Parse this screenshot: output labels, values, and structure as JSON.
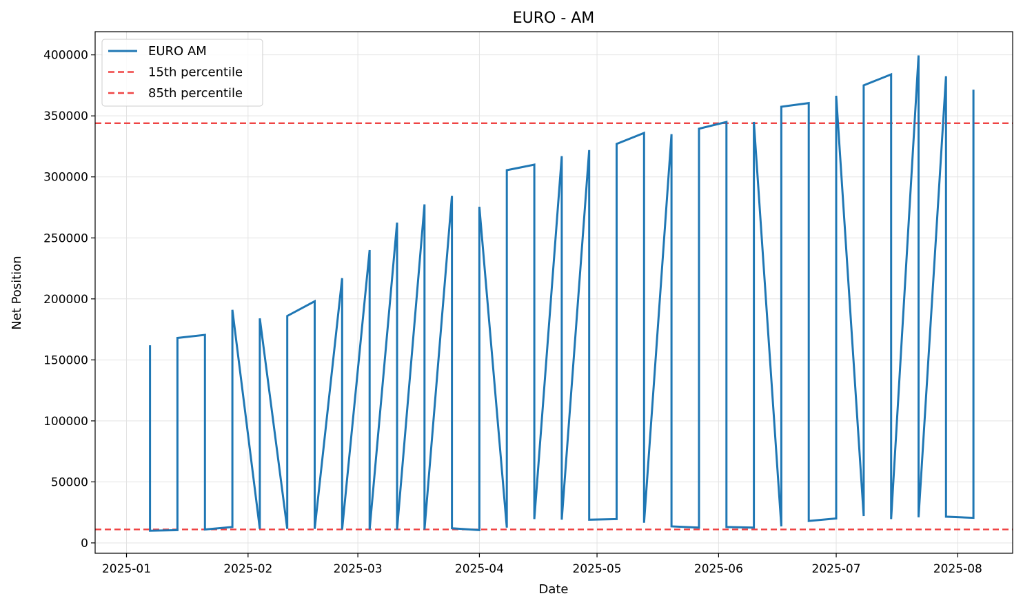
{
  "chart_data": {
    "type": "line",
    "title": "EURO - AM",
    "xlabel": "Date",
    "ylabel": "Net Position",
    "xlim": [
      "2024-12-24",
      "2025-08-15"
    ],
    "ylim": [
      -8500,
      419000
    ],
    "x_ticks": [
      "2025-01-01",
      "2025-02-01",
      "2025-03-01",
      "2025-04-01",
      "2025-05-01",
      "2025-06-01",
      "2025-07-01",
      "2025-08-01"
    ],
    "x_tick_labels": [
      "2025-01",
      "2025-02",
      "2025-03",
      "2025-04",
      "2025-05",
      "2025-06",
      "2025-07",
      "2025-08"
    ],
    "y_ticks": [
      0,
      50000,
      100000,
      150000,
      200000,
      250000,
      300000,
      350000,
      400000
    ],
    "y_tick_labels": [
      "0",
      "50000",
      "100000",
      "150000",
      "200000",
      "250000",
      "300000",
      "350000",
      "400000"
    ],
    "grid": true,
    "legend": "top-left",
    "series": [
      {
        "name": "EURO AM",
        "color": "#1f77b4",
        "style": "solid",
        "points": [
          [
            "2025-01-07",
            162000
          ],
          [
            "2025-01-07",
            10000
          ],
          [
            "2025-01-14",
            10500
          ],
          [
            "2025-01-14",
            168000
          ],
          [
            "2025-01-21",
            170500
          ],
          [
            "2025-01-21",
            11000
          ],
          [
            "2025-01-28",
            13000
          ],
          [
            "2025-01-28",
            191000
          ],
          [
            "2025-02-04",
            11500
          ],
          [
            "2025-02-04",
            184000
          ],
          [
            "2025-02-11",
            11500
          ],
          [
            "2025-02-11",
            186000
          ],
          [
            "2025-02-18",
            198000
          ],
          [
            "2025-02-18",
            11500
          ],
          [
            "2025-02-25",
            217000
          ],
          [
            "2025-02-25",
            11000
          ],
          [
            "2025-03-04",
            240000
          ],
          [
            "2025-03-04",
            11000
          ],
          [
            "2025-03-11",
            262500
          ],
          [
            "2025-03-11",
            11000
          ],
          [
            "2025-03-18",
            277500
          ],
          [
            "2025-03-18",
            11000
          ],
          [
            "2025-03-25",
            284500
          ],
          [
            "2025-03-25",
            12000
          ],
          [
            "2025-04-01",
            10500
          ],
          [
            "2025-04-01",
            275500
          ],
          [
            "2025-04-08",
            12500
          ],
          [
            "2025-04-08",
            305500
          ],
          [
            "2025-04-15",
            310000
          ],
          [
            "2025-04-15",
            19500
          ],
          [
            "2025-04-22",
            317000
          ],
          [
            "2025-04-22",
            19000
          ],
          [
            "2025-04-29",
            322000
          ],
          [
            "2025-04-29",
            19000
          ],
          [
            "2025-05-06",
            19500
          ],
          [
            "2025-05-06",
            327000
          ],
          [
            "2025-05-13",
            336000
          ],
          [
            "2025-05-13",
            16500
          ],
          [
            "2025-05-20",
            335000
          ],
          [
            "2025-05-20",
            13500
          ],
          [
            "2025-05-27",
            12500
          ],
          [
            "2025-05-27",
            339500
          ],
          [
            "2025-06-03",
            345000
          ],
          [
            "2025-06-03",
            13000
          ],
          [
            "2025-06-10",
            12500
          ],
          [
            "2025-06-10",
            345000
          ],
          [
            "2025-06-17",
            13500
          ],
          [
            "2025-06-17",
            357500
          ],
          [
            "2025-06-24",
            360500
          ],
          [
            "2025-06-24",
            18000
          ],
          [
            "2025-07-01",
            20000
          ],
          [
            "2025-07-01",
            366500
          ],
          [
            "2025-07-08",
            22000
          ],
          [
            "2025-07-08",
            375000
          ],
          [
            "2025-07-15",
            384000
          ],
          [
            "2025-07-15",
            19500
          ],
          [
            "2025-07-22",
            399500
          ],
          [
            "2025-07-22",
            21000
          ],
          [
            "2025-07-29",
            382500
          ],
          [
            "2025-07-29",
            21500
          ],
          [
            "2025-08-05",
            20500
          ],
          [
            "2025-08-05",
            371500
          ]
        ]
      },
      {
        "name": "15th percentile",
        "color": "#ef4444",
        "style": "dashed",
        "y": 11000
      },
      {
        "name": "85th percentile",
        "color": "#ef4444",
        "style": "dashed",
        "y": 344000
      }
    ]
  }
}
